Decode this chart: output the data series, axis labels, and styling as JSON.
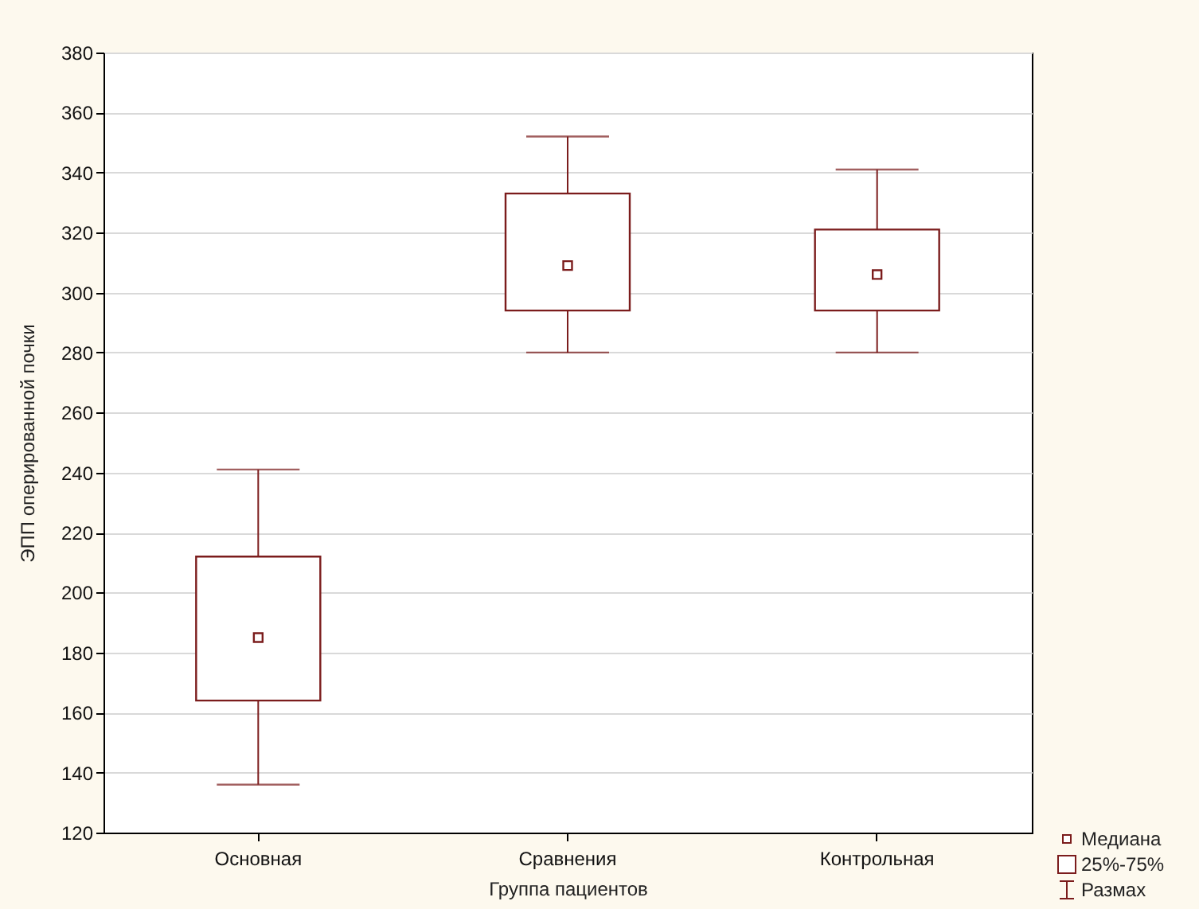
{
  "chart_data": {
    "type": "box",
    "xlabel": "Группа пациентов",
    "ylabel": "ЭПП оперированной почки",
    "categories": [
      "Основная",
      "Сравнения",
      "Контрольная"
    ],
    "boxes": [
      {
        "low": 136,
        "q1": 164,
        "median": 185,
        "q3": 212,
        "high": 241
      },
      {
        "low": 280,
        "q1": 294,
        "median": 309,
        "q3": 333,
        "high": 352
      },
      {
        "low": 280,
        "q1": 294,
        "median": 306,
        "q3": 321,
        "high": 341
      }
    ],
    "color": "#7b1c1c",
    "ylim": [
      120,
      380
    ],
    "yticks": [
      120,
      140,
      160,
      180,
      200,
      220,
      240,
      260,
      280,
      300,
      320,
      340,
      360,
      380
    ],
    "grid": "y",
    "marker": "square",
    "annotations": [
      "Медиана",
      "25%-75%",
      "Размах"
    ]
  }
}
